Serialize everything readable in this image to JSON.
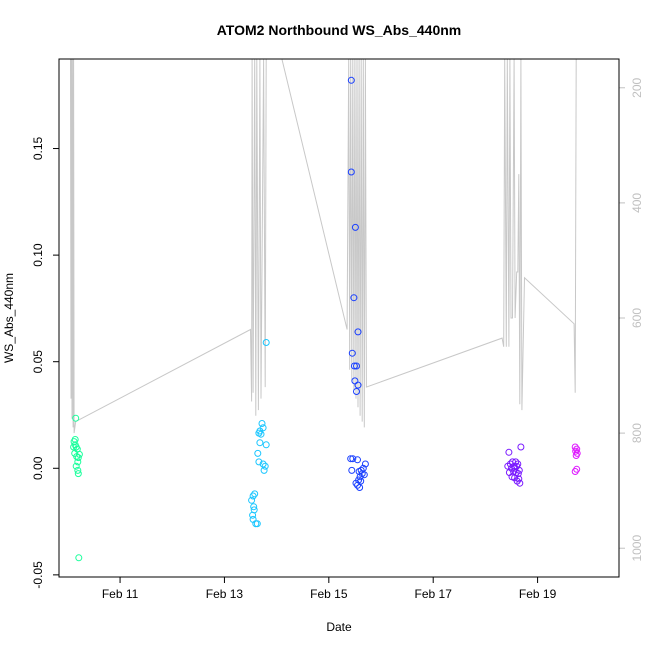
{
  "chart_data": {
    "type": "scatter",
    "title": "ATOM2 Northbound WS_Abs_440nm",
    "xlabel": "Date",
    "ylabel": "WS_Abs_440nm",
    "x_units": "days (Feb 2017)",
    "xlim": [
      9.83,
      20.56
    ],
    "ylim": [
      -0.051,
      0.192
    ],
    "y2lim": [
      150,
      1050
    ],
    "y2_reversed": true,
    "x_ticks": [
      {
        "value": 11,
        "label": "Feb 11"
      },
      {
        "value": 13,
        "label": "Feb 13"
      },
      {
        "value": 15,
        "label": "Feb 15"
      },
      {
        "value": 17,
        "label": "Feb 17"
      },
      {
        "value": 19,
        "label": "Feb 19"
      }
    ],
    "y_ticks": [
      {
        "value": -0.05,
        "label": "-0.05"
      },
      {
        "value": 0.0,
        "label": "0.00"
      },
      {
        "value": 0.05,
        "label": "0.05"
      },
      {
        "value": 0.1,
        "label": "0.10"
      },
      {
        "value": 0.15,
        "label": "0.15"
      }
    ],
    "y2_ticks": [
      {
        "value": 200,
        "label": "200"
      },
      {
        "value": 400,
        "label": "400"
      },
      {
        "value": 600,
        "label": "600"
      },
      {
        "value": 800,
        "label": "800"
      },
      {
        "value": 1000,
        "label": "1000"
      }
    ],
    "grid": false,
    "legend": "none",
    "colors": {
      "depth_line": "#c8c8c8",
      "cast_colors": [
        "#1aff9c",
        "#1ac6ff",
        "#1a40ff",
        "#7a1aff",
        "#de1aff"
      ]
    },
    "series": [
      {
        "values": [
          [
            10.15,
            0.0235
          ],
          [
            10.12,
            0.0125
          ],
          [
            10.14,
            0.011
          ],
          [
            10.16,
            0.01
          ],
          [
            10.18,
            0.009
          ],
          [
            10.13,
            0.007
          ],
          [
            10.17,
            0.0055
          ],
          [
            10.2,
            0.005
          ],
          [
            10.11,
            0.01
          ],
          [
            10.19,
            0.003
          ],
          [
            10.16,
            0.001
          ],
          [
            10.19,
            -0.001
          ],
          [
            10.2,
            -0.0025
          ],
          [
            10.14,
            0.0135
          ],
          [
            10.22,
            0.0065
          ],
          [
            10.21,
            -0.042
          ]
        ]
      },
      {
        "values": [
          [
            13.8,
            0.059
          ],
          [
            13.72,
            0.021
          ],
          [
            13.68,
            0.0175
          ],
          [
            13.74,
            0.019
          ],
          [
            13.7,
            0.016
          ],
          [
            13.66,
            0.0165
          ],
          [
            13.8,
            0.011
          ],
          [
            13.68,
            0.012
          ],
          [
            13.64,
            0.007
          ],
          [
            13.66,
            0.003
          ],
          [
            13.74,
            0.002
          ],
          [
            13.78,
            0.001
          ],
          [
            13.76,
            -0.001
          ],
          [
            13.55,
            -0.013
          ],
          [
            13.58,
            -0.012
          ],
          [
            13.52,
            -0.015
          ],
          [
            13.56,
            -0.018
          ],
          [
            13.54,
            -0.022
          ],
          [
            13.57,
            -0.0195
          ],
          [
            13.6,
            -0.026
          ],
          [
            13.63,
            -0.026
          ],
          [
            13.55,
            -0.024
          ]
        ]
      },
      {
        "values": [
          [
            15.43,
            0.182
          ],
          [
            15.43,
            0.139
          ],
          [
            15.51,
            0.113
          ],
          [
            15.48,
            0.08
          ],
          [
            15.56,
            0.064
          ],
          [
            15.45,
            0.054
          ],
          [
            15.49,
            0.048
          ],
          [
            15.53,
            0.048
          ],
          [
            15.5,
            0.041
          ],
          [
            15.56,
            0.039
          ],
          [
            15.53,
            0.036
          ],
          [
            15.42,
            0.0045
          ],
          [
            15.46,
            0.0045
          ],
          [
            15.55,
            0.004
          ],
          [
            15.44,
            -0.001
          ],
          [
            15.58,
            -0.0015
          ],
          [
            15.62,
            -0.001
          ],
          [
            15.66,
            0.0
          ],
          [
            15.7,
            0.002
          ],
          [
            15.64,
            -0.0025
          ],
          [
            15.68,
            -0.003
          ],
          [
            15.6,
            -0.004
          ],
          [
            15.57,
            -0.0055
          ],
          [
            15.61,
            -0.006
          ],
          [
            15.52,
            -0.007
          ],
          [
            15.55,
            -0.008
          ],
          [
            15.59,
            -0.009
          ]
        ]
      },
      {
        "values": [
          [
            18.68,
            0.01
          ],
          [
            18.45,
            0.0075
          ],
          [
            18.52,
            0.003
          ],
          [
            18.58,
            0.003
          ],
          [
            18.48,
            0.002
          ],
          [
            18.62,
            0.002
          ],
          [
            18.43,
            0.001
          ],
          [
            18.55,
            0.001
          ],
          [
            18.6,
            0.001
          ],
          [
            18.5,
            0.0
          ],
          [
            18.57,
            0.0
          ],
          [
            18.65,
            -0.001
          ],
          [
            18.46,
            -0.002
          ],
          [
            18.54,
            -0.0015
          ],
          [
            18.59,
            -0.002
          ],
          [
            18.63,
            -0.0025
          ],
          [
            18.51,
            -0.004
          ],
          [
            18.56,
            -0.0045
          ],
          [
            18.64,
            -0.005
          ],
          [
            18.61,
            -0.006
          ],
          [
            18.66,
            -0.007
          ]
        ]
      },
      {
        "values": [
          [
            19.72,
            0.01
          ],
          [
            19.75,
            0.009
          ],
          [
            19.73,
            0.008
          ],
          [
            19.76,
            0.007
          ],
          [
            19.74,
            0.006
          ],
          [
            19.75,
            -0.0005
          ],
          [
            19.72,
            -0.0015
          ]
        ]
      }
    ],
    "depth_line": {
      "axis": "y2",
      "values": [
        [
          10.05,
          150
        ],
        [
          10.06,
          740
        ],
        [
          10.07,
          150
        ],
        [
          10.08,
          775
        ],
        [
          10.09,
          150
        ],
        [
          10.1,
          790
        ],
        [
          10.11,
          150
        ],
        [
          10.12,
          800
        ],
        [
          10.15,
          780
        ],
        [
          13.5,
          620
        ],
        [
          13.52,
          745
        ],
        [
          13.53,
          150
        ],
        [
          13.55,
          730
        ],
        [
          13.58,
          150
        ],
        [
          13.6,
          770
        ],
        [
          13.62,
          150
        ],
        [
          13.65,
          760
        ],
        [
          13.68,
          150
        ],
        [
          13.7,
          740
        ],
        [
          13.75,
          150
        ],
        [
          13.78,
          720
        ],
        [
          13.8,
          150
        ],
        [
          14.1,
          150
        ],
        [
          15.35,
          620
        ],
        [
          15.38,
          150
        ],
        [
          15.4,
          690
        ],
        [
          15.42,
          150
        ],
        [
          15.44,
          710
        ],
        [
          15.46,
          150
        ],
        [
          15.48,
          725
        ],
        [
          15.5,
          150
        ],
        [
          15.52,
          740
        ],
        [
          15.54,
          150
        ],
        [
          15.56,
          755
        ],
        [
          15.58,
          150
        ],
        [
          15.6,
          770
        ],
        [
          15.62,
          150
        ],
        [
          15.64,
          780
        ],
        [
          15.66,
          150
        ],
        [
          15.68,
          790
        ],
        [
          15.7,
          150
        ],
        [
          15.72,
          720
        ],
        [
          18.32,
          635
        ],
        [
          18.35,
          650
        ],
        [
          18.37,
          150
        ],
        [
          18.4,
          650
        ],
        [
          18.42,
          150
        ],
        [
          18.45,
          650
        ],
        [
          18.47,
          150
        ],
        [
          18.49,
          600
        ],
        [
          18.52,
          600
        ],
        [
          18.55,
          150
        ],
        [
          18.57,
          600
        ],
        [
          18.6,
          520
        ],
        [
          18.62,
          520
        ],
        [
          18.64,
          350
        ],
        [
          18.66,
          750
        ],
        [
          18.68,
          150
        ],
        [
          18.7,
          760
        ],
        [
          18.75,
          530
        ],
        [
          19.7,
          610
        ],
        [
          19.72,
          730
        ],
        [
          19.74,
          150
        ]
      ]
    }
  }
}
